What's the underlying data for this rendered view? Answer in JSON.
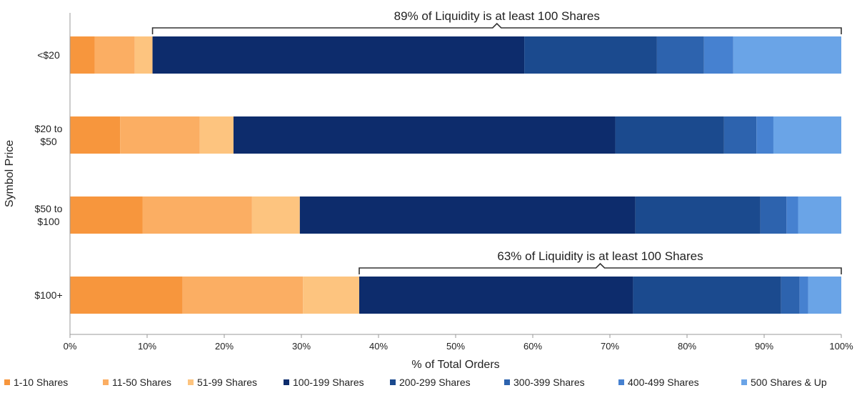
{
  "chart_data": {
    "type": "bar",
    "orientation": "horizontal",
    "stacked": true,
    "categories": [
      [
        "<$20"
      ],
      [
        "$20 to",
        "$50"
      ],
      [
        "$50 to",
        "$100"
      ],
      [
        "$100+"
      ]
    ],
    "series": [
      {
        "name": "1-10 Shares",
        "color": "#F7963D",
        "values": [
          3.2,
          6.5,
          9.4,
          14.6
        ]
      },
      {
        "name": "11-50 Shares",
        "color": "#FBAE63",
        "values": [
          5.2,
          10.3,
          14.2,
          15.6
        ]
      },
      {
        "name": "51-99 Shares",
        "color": "#FDC47F",
        "values": [
          2.3,
          4.4,
          6.2,
          7.3
        ]
      },
      {
        "name": "100-199 Shares",
        "color": "#0D2C6C",
        "values": [
          48.2,
          49.5,
          43.5,
          35.5
        ]
      },
      {
        "name": "200-299 Shares",
        "color": "#1B4A8E",
        "values": [
          17.2,
          14.1,
          16.2,
          19.2
        ]
      },
      {
        "name": "300-399 Shares",
        "color": "#2D63AE",
        "values": [
          6.1,
          4.2,
          3.4,
          2.4
        ]
      },
      {
        "name": "400-499 Shares",
        "color": "#4681D0",
        "values": [
          3.8,
          2.2,
          1.5,
          1.1
        ]
      },
      {
        "name": "500 Shares & Up",
        "color": "#6AA4E7",
        "values": [
          14.0,
          8.8,
          5.6,
          4.3
        ]
      }
    ],
    "xlabel": "% of Total Orders",
    "ylabel": "Symbol Price",
    "xlim": [
      0,
      100
    ],
    "xticks": [
      "0%",
      "10%",
      "20%",
      "30%",
      "40%",
      "50%",
      "60%",
      "70%",
      "80%",
      "90%",
      "100%"
    ],
    "grid": false,
    "legend_position": "bottom",
    "annotations": [
      {
        "text": "89% of Liquidity is at least 100 Shares",
        "category_index": 0,
        "from": 10.7,
        "to": 100
      },
      {
        "text": "63% of Liquidity is at least 100 Shares",
        "category_index": 3,
        "from": 37.5,
        "to": 100
      }
    ]
  }
}
